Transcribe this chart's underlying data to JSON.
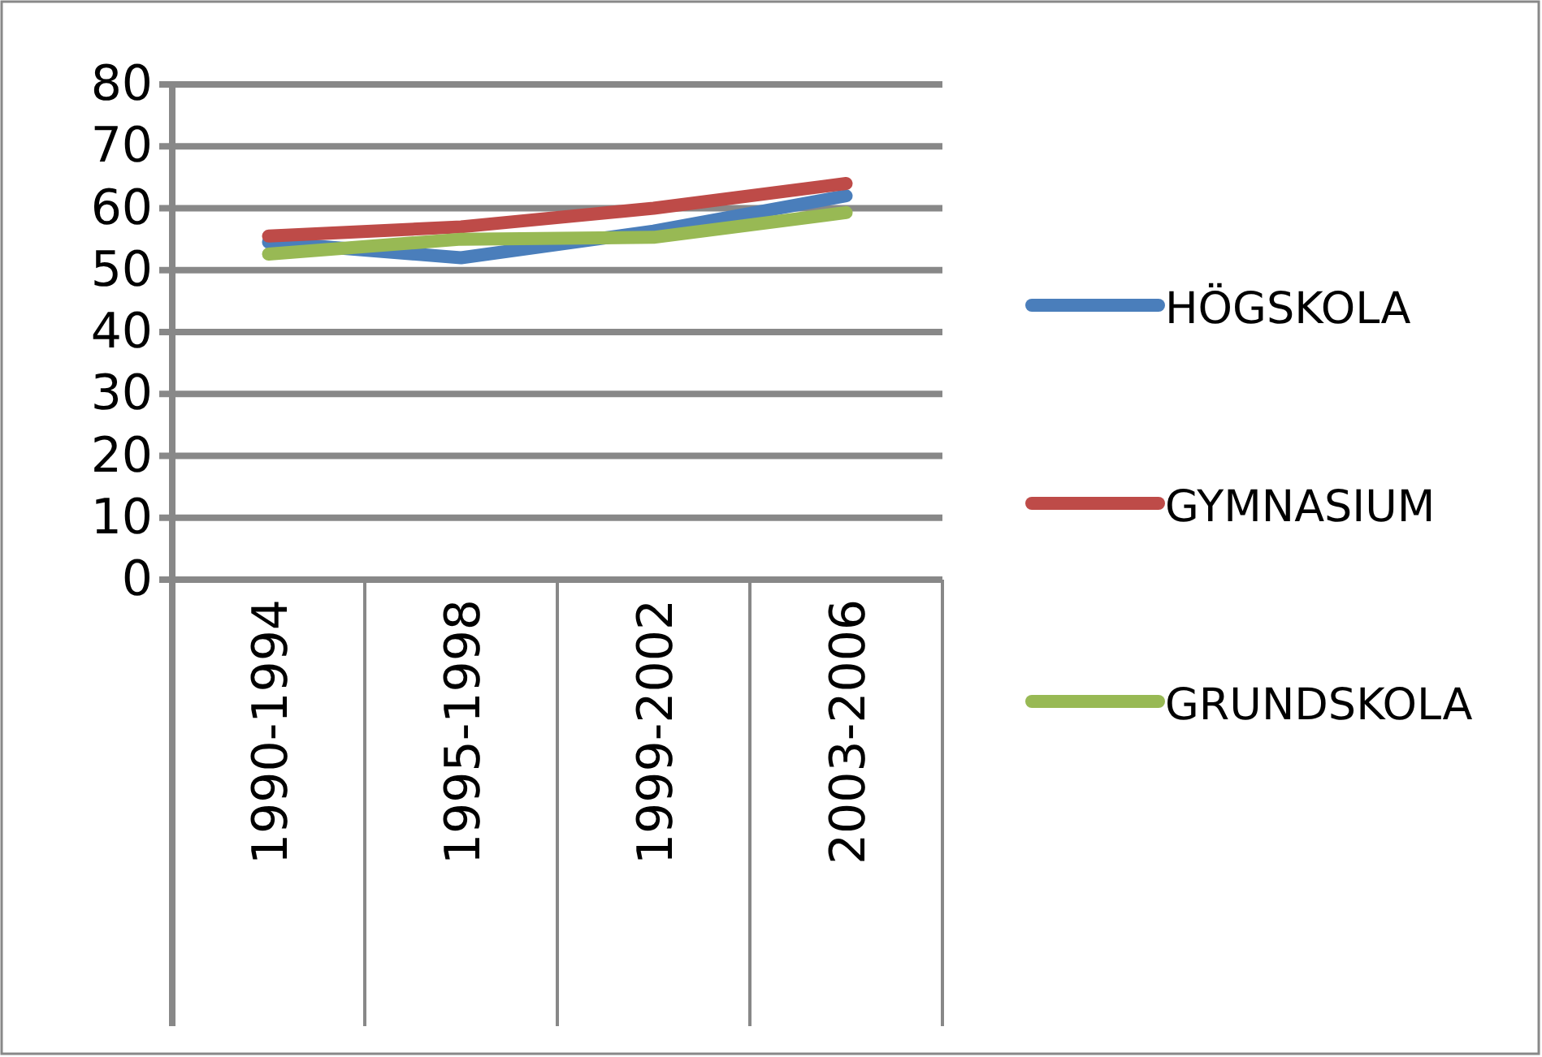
{
  "chart_data": {
    "type": "line",
    "categories": [
      "1990-1994",
      "1995-1998",
      "1999-2002",
      "2003-2006"
    ],
    "series": [
      {
        "name": "HÖGSKOLA",
        "color": "#4a7ebb",
        "values": [
          54.5,
          52,
          56.3,
          62
        ]
      },
      {
        "name": "GYMNASIUM",
        "color": "#be4b48",
        "values": [
          55.5,
          57,
          60,
          64
        ]
      },
      {
        "name": "GRUNDSKOLA",
        "color": "#98b954",
        "values": [
          52.6,
          55,
          55.3,
          59.3
        ]
      }
    ],
    "ylim": [
      0,
      80
    ],
    "yticks": [
      0,
      10,
      20,
      30,
      40,
      50,
      60,
      70,
      80
    ],
    "grid": "y",
    "legend": "right",
    "marker": "none",
    "line_style": "solid"
  }
}
